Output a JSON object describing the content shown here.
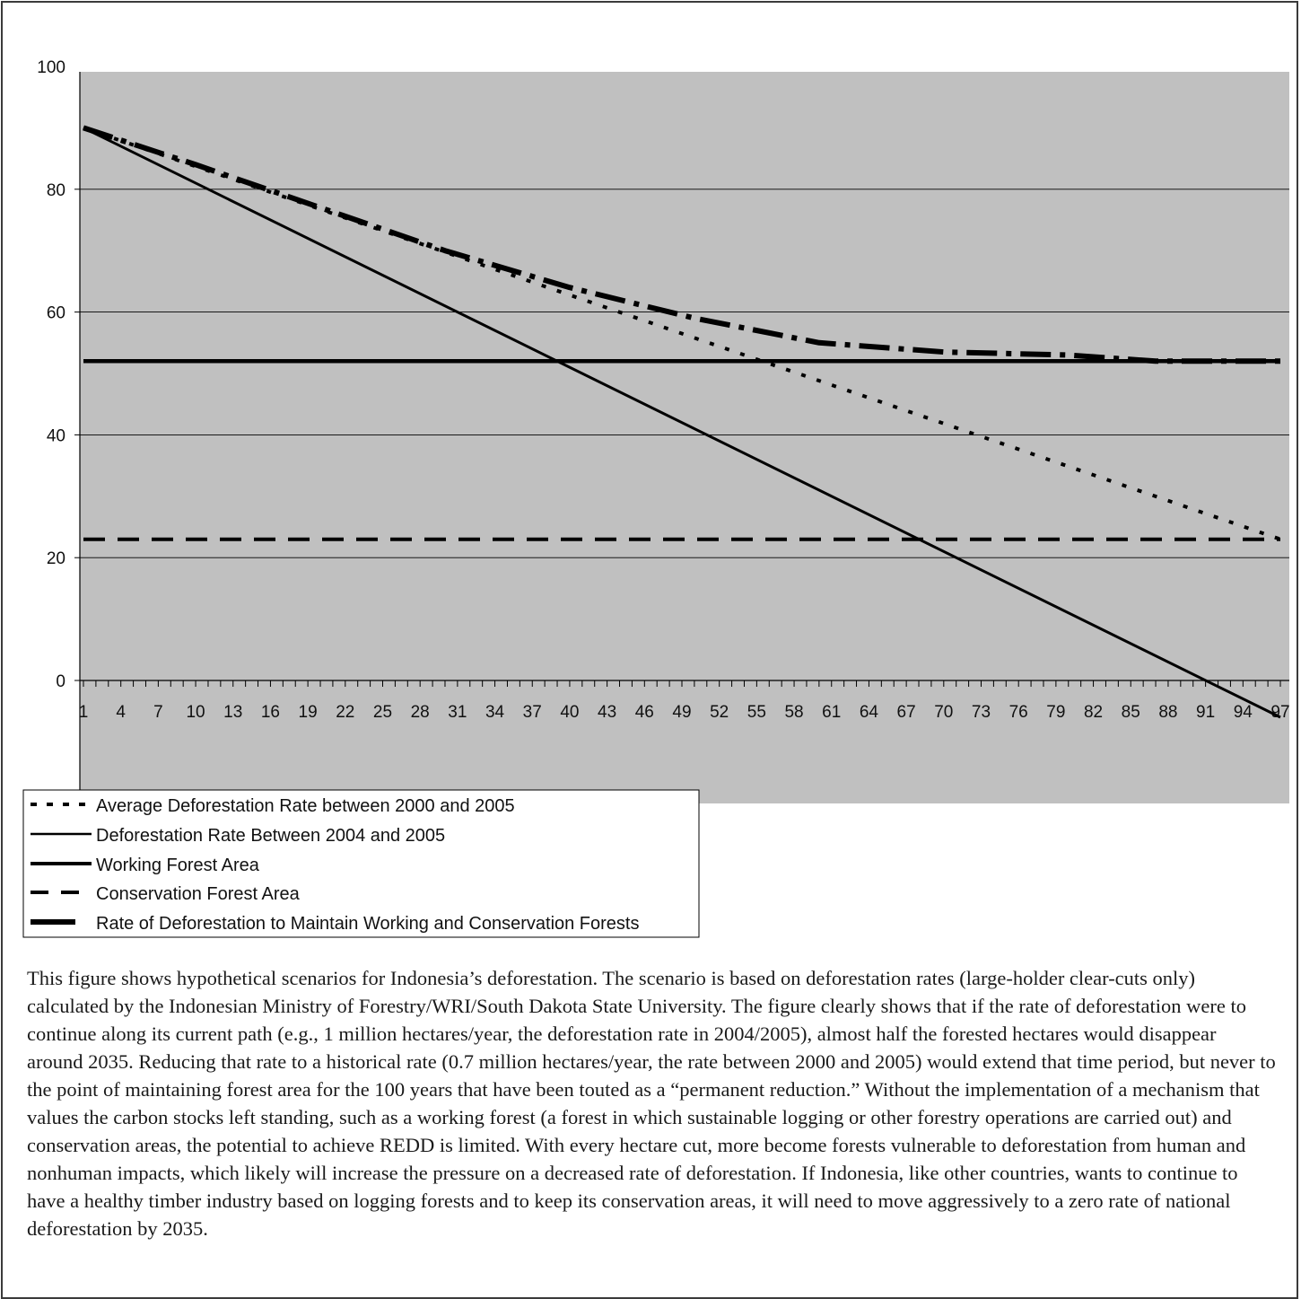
{
  "colors": {
    "plot_background": "#c0c0c0",
    "line": "#000000",
    "page_border": "#3a3a3a"
  },
  "chart_data": {
    "type": "line",
    "title": "",
    "xlabel": "",
    "ylabel": "",
    "xlim": [
      1,
      97
    ],
    "ylim": [
      -10,
      100
    ],
    "x_tick_labels": [
      1,
      4,
      7,
      10,
      13,
      16,
      19,
      22,
      25,
      28,
      31,
      34,
      37,
      40,
      43,
      46,
      49,
      52,
      55,
      58,
      61,
      64,
      67,
      70,
      73,
      76,
      79,
      82,
      85,
      88,
      91,
      94,
      97
    ],
    "y_tick_labels": [
      0,
      20,
      40,
      60,
      80,
      100
    ],
    "grid": true,
    "legend_position": "bottom-left",
    "series": [
      {
        "name": "Average Deforestation Rate between 2000 and 2005",
        "style": "dotted",
        "x": [
          1,
          97
        ],
        "y": [
          90,
          23
        ]
      },
      {
        "name": "Deforestation Rate Between 2004 and 2005",
        "style": "solid-thin",
        "x": [
          1,
          97
        ],
        "y": [
          90,
          -6
        ]
      },
      {
        "name": "Working Forest Area",
        "style": "solid-thick",
        "x": [
          1,
          97
        ],
        "y": [
          52,
          52
        ]
      },
      {
        "name": "Conservation Forest Area",
        "style": "dashed",
        "x": [
          1,
          97
        ],
        "y": [
          23,
          23
        ]
      },
      {
        "name": "Rate of Deforestation to Maintain Working and Conservation Forests",
        "style": "dash-dot-thick",
        "x": [
          1,
          10,
          20,
          30,
          40,
          50,
          60,
          70,
          80,
          87,
          97
        ],
        "y": [
          90,
          84,
          77,
          70,
          64,
          59,
          55,
          53.5,
          53,
          52,
          52
        ]
      }
    ]
  },
  "legend": {
    "items": [
      "Average Deforestation Rate between 2000 and 2005",
      "Deforestation Rate Between 2004 and 2005",
      "Working Forest Area",
      "Conservation Forest Area",
      "Rate of Deforestation to Maintain Working and Conservation Forests"
    ]
  },
  "caption": "This figure shows hypothetical scenarios for Indonesia’s deforestation. The scenario is based on deforestation rates (large-holder clear-cuts only) calculated by the Indonesian Ministry of Forestry/WRI/South Dakota State University. The figure clearly shows that if the rate of deforestation were to continue along its current path (e.g., 1 million hectares/year, the deforestation rate in 2004/2005), almost half the forested hectares would disappear around 2035. Reducing that rate to a historical rate (0.7 million hectares/year, the rate between 2000 and 2005) would extend that time period, but never to the point of maintaining forest area for the 100 years that have been touted as a “permanent reduction.” Without the implementation of a mechanism that values the carbon stocks left standing, such as a working forest (a forest in which sustainable logging or other forestry operations are carried out) and conservation areas, the potential to achieve REDD is limited. With every hectare cut, more become forests vulnerable to deforestation from human and nonhuman impacts, which likely will increase the pressure on a decreased rate of deforestation. If Indonesia, like other countries, wants to continue to have a healthy timber industry based on logging forests and to keep its conservation areas, it will need to move aggressively to a zero rate of national deforestation by 2035."
}
